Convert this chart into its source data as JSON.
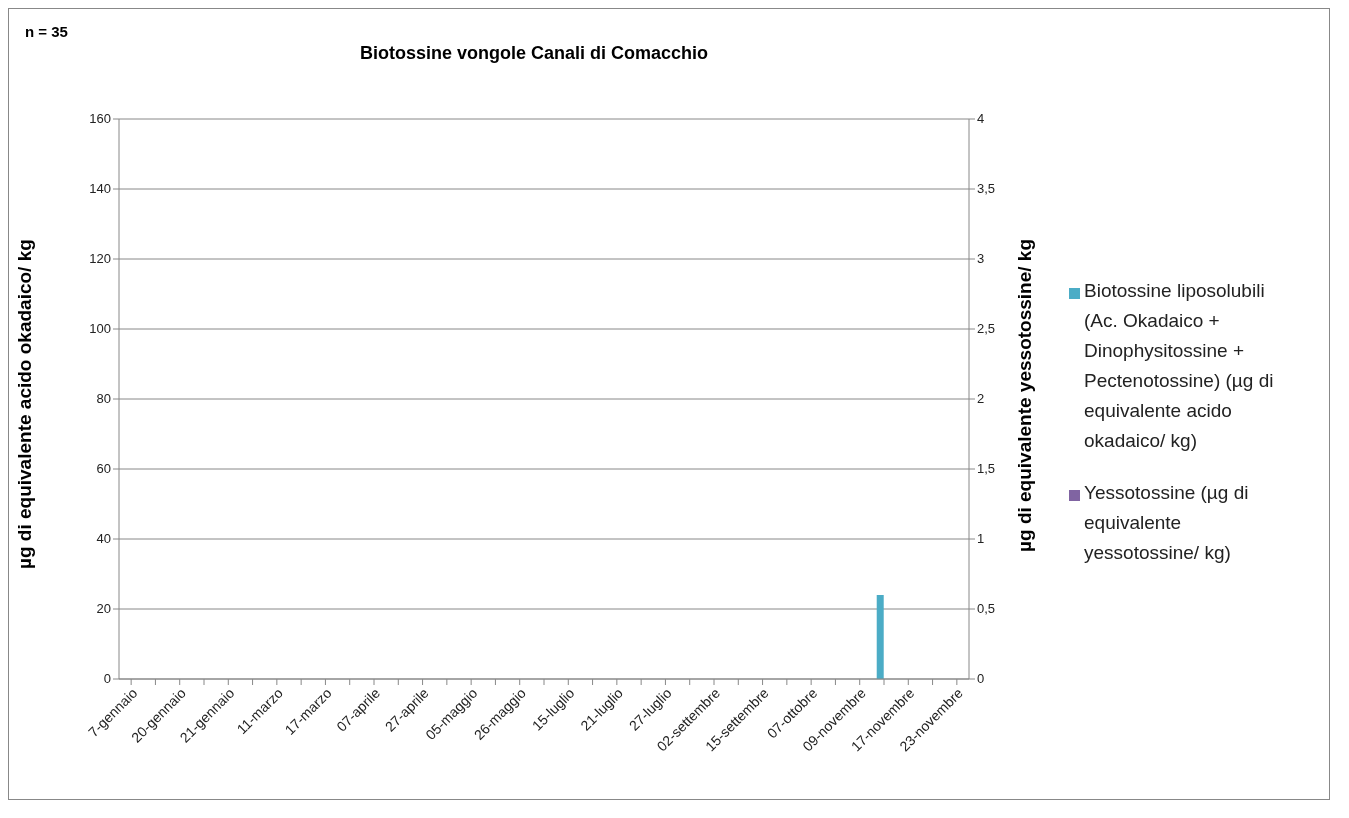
{
  "chart_data": {
    "type": "bar",
    "title": "Biotossine vongole Canali di Comacchio",
    "annotations": [
      "n = 35"
    ],
    "ylabel": "µg di equivalente acido okadaico/ kg",
    "y2label": "µg di equivalente yessotossine/ kg",
    "categories": [
      "7-gennaio",
      null,
      "20-gennaio",
      null,
      "21-gennaio",
      null,
      "11-marzo",
      null,
      "17-marzo",
      null,
      "07-aprile",
      null,
      "27-aprile",
      null,
      "05-maggio",
      null,
      "26-maggio",
      null,
      "15-luglio",
      null,
      "21-luglio",
      null,
      "27-luglio",
      null,
      "02-settembre",
      null,
      "15-settembre",
      null,
      "07-ottobre",
      null,
      "09-novembre",
      null,
      "17-novembre",
      null,
      "23-novembre"
    ],
    "series": [
      {
        "name": "Biotossine liposolubili (Ac. Okadaico + Dinophysitossine + Pectenotossine) (µg di equivalente acido okadaico/ kg)",
        "color": "#4bacc6",
        "values": [
          null,
          null,
          null,
          null,
          null,
          null,
          null,
          null,
          null,
          null,
          null,
          null,
          null,
          null,
          null,
          null,
          null,
          null,
          null,
          null,
          null,
          null,
          null,
          null,
          null,
          null,
          null,
          null,
          null,
          null,
          null,
          24,
          null,
          null,
          null
        ]
      },
      {
        "name": "Yessotossine (µg di equivalente yessotossine/ kg)",
        "color": "#8064a2",
        "axis": "y2",
        "values": [
          null,
          null,
          null,
          null,
          null,
          null,
          null,
          null,
          null,
          null,
          null,
          null,
          null,
          null,
          null,
          null,
          null,
          null,
          null,
          null,
          null,
          null,
          null,
          null,
          null,
          null,
          null,
          null,
          null,
          null,
          null,
          null,
          null,
          null,
          null
        ]
      }
    ],
    "ylim": [
      0,
      160
    ],
    "yticks": [
      0,
      20,
      40,
      60,
      80,
      100,
      120,
      140,
      160
    ],
    "y2lim": [
      0,
      4
    ],
    "y2ticks": [
      0,
      {
        "value": 0.5,
        "label": "0,5"
      },
      1,
      {
        "value": 1.5,
        "label": "1,5"
      },
      2,
      {
        "value": 2.5,
        "label": "2,5"
      },
      3,
      {
        "value": 3.5,
        "label": "3,5"
      },
      4
    ],
    "grid": "y",
    "legend": "right"
  }
}
